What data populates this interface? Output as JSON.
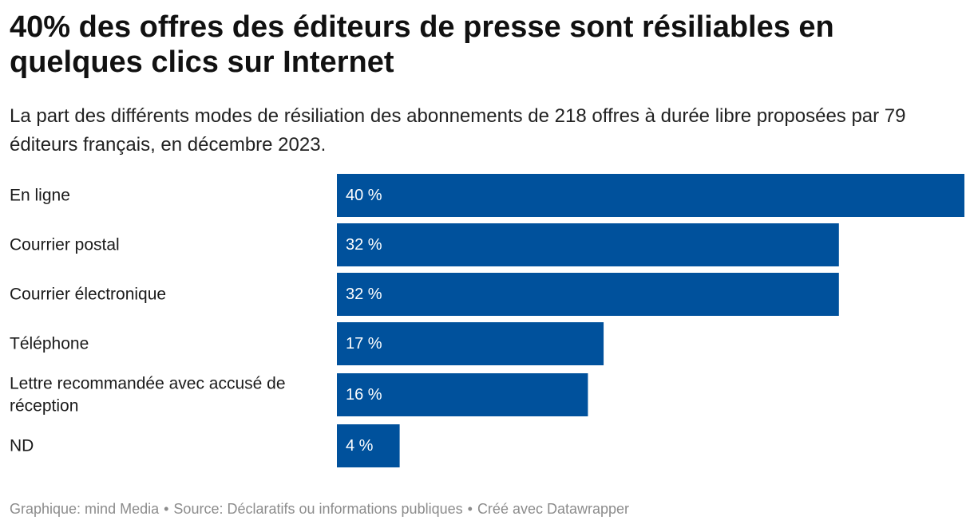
{
  "chart_data": {
    "type": "bar",
    "orientation": "horizontal",
    "title": "40% des offres des éditeurs de presse sont résiliables en quelques clics sur Internet",
    "subtitle": "La part des différents modes de résiliation des abonnements de 218 offres à durée libre proposées par 79 éditeurs français, en décembre 2023.",
    "categories": [
      "En ligne",
      "Courrier postal",
      "Courrier électronique",
      "Téléphone",
      "Lettre recommandée avec accusé de réception",
      "ND"
    ],
    "category_lines": [
      [
        "En ligne"
      ],
      [
        "Courrier postal"
      ],
      [
        "Courrier électronique"
      ],
      [
        "Téléphone"
      ],
      [
        "Lettre recommandée avec accusé de",
        "réception"
      ],
      [
        "ND"
      ]
    ],
    "values": [
      40,
      32,
      32,
      17,
      16,
      4
    ],
    "value_labels": [
      "40 %",
      "32 %",
      "32 %",
      "17 %",
      "16 %",
      "4 %"
    ],
    "xlim": [
      0,
      40
    ],
    "bar_color": "#00519c",
    "label_color": "#ffffff",
    "grid": false,
    "legend": "none"
  },
  "footer": {
    "graphic": "Graphique: mind Media",
    "source": "Source: Déclaratifs ou informations publiques",
    "created": "Créé avec Datawrapper",
    "separator": "•"
  }
}
